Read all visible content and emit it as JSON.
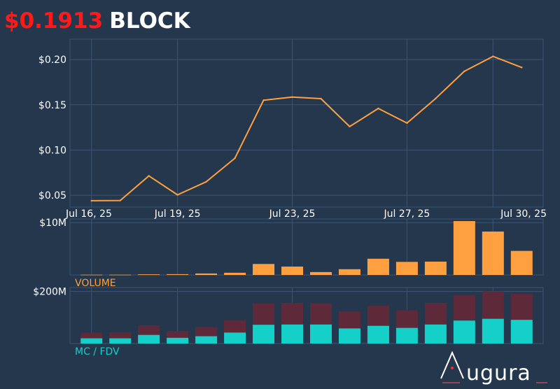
{
  "header": {
    "price": "$0.1913",
    "ticker": "BLOCK"
  },
  "colors": {
    "background": "#24374d",
    "grid": "#3d5573",
    "price_line": "#ffa040",
    "volume_bar": "#ffa040",
    "mc_bar": "#14d0c8",
    "fdv_bar": "#5e2a3a",
    "price_text": "#ff1a1a",
    "axis_text": "#ffffff",
    "volume_label": "#ffa040",
    "mcfdv_label": "#14d0c8"
  },
  "chart_data": [
    {
      "type": "line",
      "name": "price",
      "title": "",
      "x_tick_labels": [
        "Jul 16, 25",
        "Jul 19, 25",
        "Jul 23, 25",
        "Jul 27, 25",
        "Jul 30, 25"
      ],
      "x_tick_days": [
        16,
        19,
        23,
        27,
        30
      ],
      "x": [
        16,
        17,
        18,
        19,
        20,
        21,
        22,
        23,
        24,
        25,
        26,
        27,
        28,
        29,
        30,
        31
      ],
      "values": [
        0.044,
        0.0443,
        0.0715,
        0.0505,
        0.065,
        0.091,
        0.155,
        0.1585,
        0.1568,
        0.126,
        0.146,
        0.1298,
        0.157,
        0.187,
        0.2035,
        0.1913
      ],
      "y_tick_labels": [
        "$0.05",
        "$0.10",
        "$0.15",
        "$0.20"
      ],
      "y_ticks": [
        0.05,
        0.1,
        0.15,
        0.2
      ],
      "ylim": [
        0.037,
        0.2225
      ],
      "xlim": [
        15.25,
        31.75
      ]
    },
    {
      "type": "bar",
      "name": "volume",
      "label": "VOLUME",
      "y_tick_labels": [
        "$10M"
      ],
      "y_ticks": [
        10
      ],
      "unit": "M",
      "ylim": [
        0,
        10.7
      ],
      "x": [
        16,
        17,
        18,
        19,
        20,
        21,
        22,
        23,
        24,
        25,
        26,
        27,
        28,
        29,
        30,
        31
      ],
      "values": [
        0.05,
        0.05,
        0.12,
        0.15,
        0.28,
        0.42,
        2.1,
        1.6,
        0.55,
        1.1,
        3.1,
        2.5,
        2.55,
        10.3,
        8.3,
        4.6
      ]
    },
    {
      "type": "bar",
      "name": "mc_fdv",
      "label": "MC / FDV",
      "y_tick_labels": [
        "$200M"
      ],
      "y_ticks": [
        200
      ],
      "unit": "M",
      "ylim": [
        0,
        215
      ],
      "x": [
        16,
        17,
        18,
        19,
        20,
        21,
        22,
        23,
        24,
        25,
        26,
        27,
        28,
        29,
        30,
        31
      ],
      "series": [
        {
          "name": "MC",
          "values": [
            20,
            20,
            33,
            22,
            28,
            42,
            72,
            73,
            73,
            58,
            68,
            60,
            73,
            88,
            95,
            91
          ]
        },
        {
          "name": "FDV",
          "values": [
            42,
            43,
            70,
            48,
            63,
            89,
            154,
            156,
            155,
            124,
            146,
            128,
            156,
            186,
            200,
            191
          ]
        }
      ]
    }
  ]
}
